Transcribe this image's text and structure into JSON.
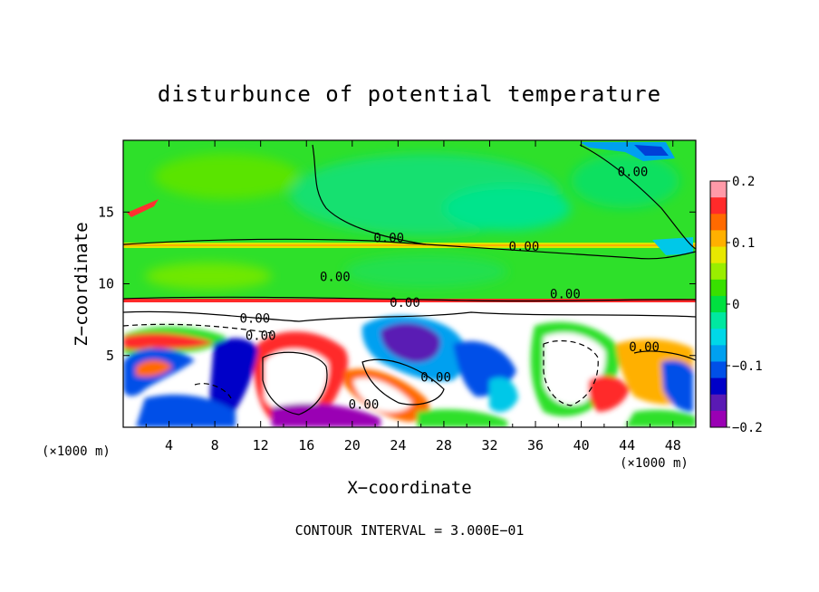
{
  "chart_data": {
    "type": "heatmap",
    "title": "disturbunce of potential temperature",
    "xlabel": "X−coordinate",
    "ylabel": "Z−coordinate",
    "x_unit": "(×1000 m)",
    "z_unit": "(×1000 m)",
    "xlim": [
      0,
      50
    ],
    "ylim": [
      0,
      20
    ],
    "x_ticks": [
      4,
      8,
      12,
      16,
      20,
      24,
      28,
      32,
      36,
      40,
      44,
      48
    ],
    "x_tick_labels": [
      "4",
      "8",
      "12",
      "16",
      "20",
      "24",
      "28",
      "32",
      "36",
      "40",
      "44",
      "48"
    ],
    "y_ticks": [
      5,
      10,
      15
    ],
    "y_tick_labels": [
      "5",
      "10",
      "15"
    ],
    "contour_interval_text": "CONTOUR INTERVAL = 3.000E−01",
    "colorbar": {
      "range": [
        -0.2,
        0.2
      ],
      "ticks": [
        0.2,
        0.1,
        0,
        -0.1,
        -0.2
      ],
      "tick_labels": [
        "0.2",
        "0.1",
        "0",
        "−0.1",
        "−0.2"
      ],
      "colors": [
        "#ff9aa8",
        "#ff2a2a",
        "#ff6a00",
        "#ffb000",
        "#e8e800",
        "#9aee00",
        "#38e000",
        "#00e040",
        "#00e8a0",
        "#00d8e8",
        "#00a0f0",
        "#0050e8",
        "#0000c8",
        "#5a1ab4",
        "#9a00b4"
      ]
    },
    "contour_labels": [
      {
        "text": "0.00",
        "x": 18.5,
        "z": 10.2
      },
      {
        "text": "0.00",
        "x": 23.2,
        "z": 12.9
      },
      {
        "text": "0.00",
        "x": 35.0,
        "z": 12.3
      },
      {
        "text": "0.00",
        "x": 44.5,
        "z": 17.5
      },
      {
        "text": "0.00",
        "x": 24.6,
        "z": 8.4
      },
      {
        "text": "0.00",
        "x": 38.6,
        "z": 9.0
      },
      {
        "text": "0.00",
        "x": 11.5,
        "z": 7.3
      },
      {
        "text": "0.00",
        "x": 12.0,
        "z": 6.1
      },
      {
        "text": "0.00",
        "x": 27.3,
        "z": 3.2
      },
      {
        "text": "0.00",
        "x": 21.0,
        "z": 1.3
      },
      {
        "text": "0.00",
        "x": 45.5,
        "z": 5.3
      }
    ]
  }
}
